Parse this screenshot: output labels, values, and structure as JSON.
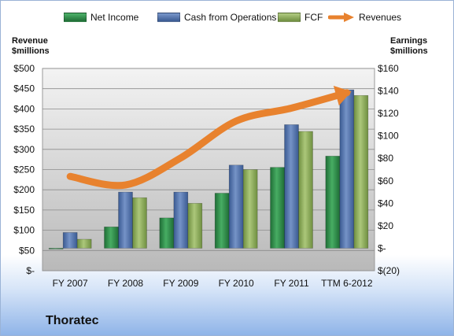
{
  "legend": [
    {
      "label": "Net Income",
      "color": "#2f8a4a"
    },
    {
      "label": "Cash from Operations",
      "color": "#4d6fa8"
    },
    {
      "label": "FCF",
      "color": "#8fae5c"
    },
    {
      "label": "Revenues",
      "color": "#e8822e"
    }
  ],
  "left_axis_title": [
    "Revenue",
    "$millions"
  ],
  "right_axis_title": [
    "Earnings",
    "$millions"
  ],
  "company": "Thoratec",
  "chart_data": {
    "type": "bar",
    "categories": [
      "FY 2007",
      "FY 2008",
      "FY 2009",
      "FY 2010",
      "FY 2011",
      "TTM 6-2012"
    ],
    "left_axis": {
      "ylim": [
        0,
        500
      ],
      "ticks": [
        0,
        50,
        100,
        150,
        200,
        250,
        300,
        350,
        400,
        450,
        500
      ],
      "tick_labels": [
        "$-",
        "$50",
        "$100",
        "$150",
        "$200",
        "$250",
        "$300",
        "$350",
        "$400",
        "$450",
        "$500"
      ]
    },
    "right_axis": {
      "ylim": [
        -20,
        160
      ],
      "ticks": [
        -20,
        0,
        20,
        40,
        60,
        80,
        100,
        120,
        140,
        160
      ],
      "tick_labels": [
        "$(20)",
        "$-",
        "$20",
        "$40",
        "$60",
        "$80",
        "$100",
        "$120",
        "$140",
        "$160"
      ]
    },
    "series": [
      {
        "name": "Net Income",
        "axis": "right",
        "type": "bar",
        "values": [
          -0.5,
          19,
          27,
          49,
          72,
          82
        ]
      },
      {
        "name": "Cash from Operations",
        "axis": "right",
        "type": "bar",
        "values": [
          14,
          50,
          50,
          74,
          110,
          141
        ]
      },
      {
        "name": "FCF",
        "axis": "right",
        "type": "bar",
        "values": [
          8,
          45,
          40,
          70,
          104,
          136
        ]
      },
      {
        "name": "Revenues",
        "axis": "left",
        "type": "line",
        "values": [
          233,
          212,
          279,
          370,
          402,
          440
        ]
      }
    ],
    "grid": true
  }
}
